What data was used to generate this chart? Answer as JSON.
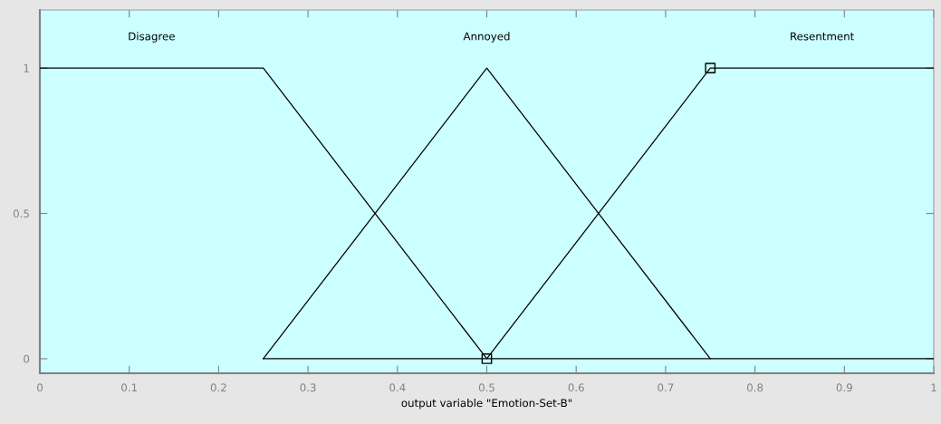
{
  "chart_data": {
    "type": "line",
    "xlabel": "output variable \"Emotion-Set-B\"",
    "series": [
      {
        "name": "Disagree",
        "color": "#000000",
        "x": [
          0,
          0.25,
          0.5,
          1
        ],
        "values": [
          1,
          1,
          0,
          0
        ]
      },
      {
        "name": "Annoyed",
        "color": "#000000",
        "x": [
          0.25,
          0.5,
          0.75
        ],
        "values": [
          0,
          1,
          0
        ]
      },
      {
        "name": "Resentment",
        "color": "#000000",
        "x": [
          0.25,
          0.5,
          0.75,
          1
        ],
        "values": [
          0,
          0,
          1,
          1
        ]
      },
      {
        "type": "scatter",
        "marker": "square",
        "color": "#000000",
        "x": [
          0.5,
          0.75
        ],
        "values": [
          0,
          1
        ]
      }
    ],
    "xlim": [
      0,
      1
    ],
    "xticks": [
      0,
      0.1,
      0.2,
      0.3,
      0.4,
      0.5,
      0.6,
      0.7,
      0.8,
      0.9,
      1
    ],
    "ylim": [
      -0.05,
      1.2
    ],
    "yticks": [
      0,
      0.5,
      1
    ],
    "grid": false,
    "legend": false,
    "line_style": "solid"
  }
}
